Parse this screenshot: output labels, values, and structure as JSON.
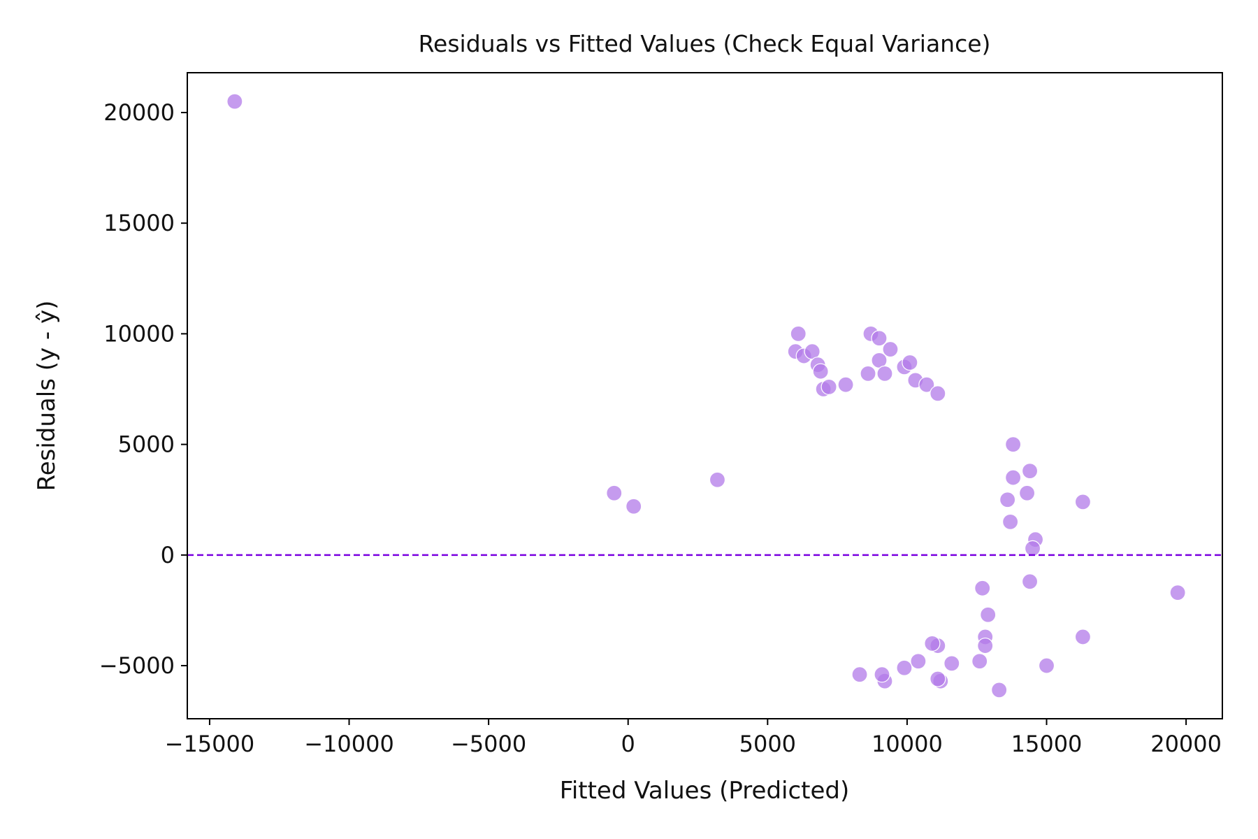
{
  "chart_data": {
    "type": "scatter",
    "title": "Residuals vs Fitted Values (Check Equal Variance)",
    "xlabel": "Fitted Values (Predicted)",
    "ylabel": "Residuals (y - ŷ)",
    "xlim": [
      -15800,
      21300
    ],
    "ylim": [
      -7400,
      21800
    ],
    "x_ticks": [
      -15000,
      -10000,
      -5000,
      0,
      5000,
      10000,
      15000,
      20000
    ],
    "x_tick_labels": [
      "−15000",
      "−10000",
      "−5000",
      "0",
      "5000",
      "10000",
      "15000",
      "20000"
    ],
    "y_ticks": [
      -5000,
      0,
      5000,
      10000,
      15000,
      20000
    ],
    "y_tick_labels": [
      "−5000",
      "0",
      "5000",
      "10000",
      "15000",
      "20000"
    ],
    "grid": false,
    "reference_line": {
      "y": 0,
      "style": "dashed",
      "color": "#7a00e0"
    },
    "point_color": "#b27ae8",
    "point_edge_color": "#ffffff",
    "series": [
      {
        "points": [
          [
            -14100,
            20500
          ],
          [
            19700,
            -1700
          ],
          [
            16300,
            2400
          ],
          [
            16300,
            -3700
          ],
          [
            15000,
            -5000
          ],
          [
            13300,
            -6100
          ],
          [
            14400,
            -1200
          ],
          [
            14600,
            700
          ],
          [
            14500,
            300
          ],
          [
            14300,
            2800
          ],
          [
            14400,
            3800
          ],
          [
            13800,
            5000
          ],
          [
            13800,
            3500
          ],
          [
            13600,
            2500
          ],
          [
            13700,
            1500
          ],
          [
            12900,
            -2700
          ],
          [
            12800,
            -3700
          ],
          [
            12800,
            -4100
          ],
          [
            12600,
            -4800
          ],
          [
            12700,
            -1500
          ],
          [
            11600,
            -4900
          ],
          [
            11200,
            -5700
          ],
          [
            11100,
            -5600
          ],
          [
            11100,
            -4100
          ],
          [
            10900,
            -4000
          ],
          [
            10400,
            -4800
          ],
          [
            9900,
            -5100
          ],
          [
            9200,
            -5700
          ],
          [
            9100,
            -5400
          ],
          [
            8300,
            -5400
          ],
          [
            3200,
            3400
          ],
          [
            200,
            2200
          ],
          [
            -500,
            2800
          ],
          [
            6100,
            10000
          ],
          [
            6000,
            9200
          ],
          [
            6300,
            9000
          ],
          [
            6600,
            9200
          ],
          [
            6800,
            8600
          ],
          [
            6900,
            8300
          ],
          [
            7000,
            7500
          ],
          [
            7200,
            7600
          ],
          [
            7800,
            7700
          ],
          [
            8700,
            10000
          ],
          [
            9000,
            9800
          ],
          [
            9400,
            9300
          ],
          [
            9000,
            8800
          ],
          [
            9900,
            8500
          ],
          [
            10100,
            8700
          ],
          [
            8600,
            8200
          ],
          [
            9200,
            8200
          ],
          [
            10300,
            7900
          ],
          [
            10700,
            7700
          ],
          [
            11100,
            7300
          ]
        ]
      }
    ]
  }
}
